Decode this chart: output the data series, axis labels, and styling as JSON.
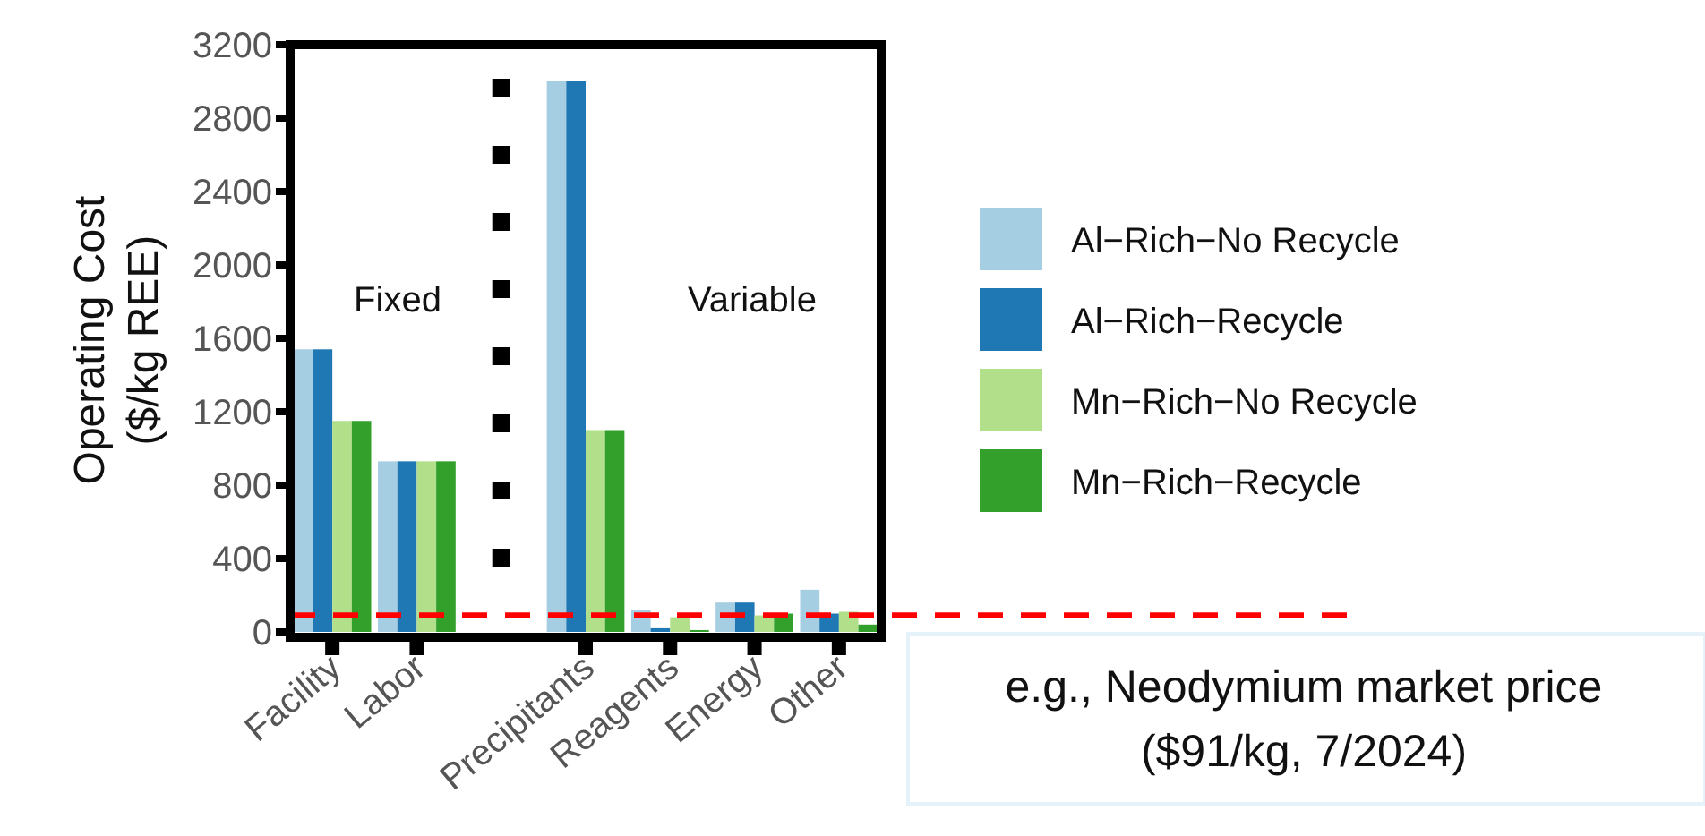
{
  "chart_data": {
    "type": "bar",
    "ylabel": "Operating Cost\n($/kg REE)",
    "categories": [
      "Facility",
      "Labor",
      null,
      "Precipitants",
      "Reagents",
      "Energy",
      "Other"
    ],
    "series": [
      {
        "name": "Al−Rich−No Recycle",
        "color": "#a6cee3",
        "values": [
          1540,
          930,
          null,
          3000,
          120,
          160,
          230
        ]
      },
      {
        "name": "Al−Rich−Recycle",
        "color": "#1f78b4",
        "values": [
          1540,
          930,
          null,
          3000,
          20,
          160,
          100
        ]
      },
      {
        "name": "Mn−Rich−No Recycle",
        "color": "#b2df8a",
        "values": [
          1150,
          930,
          null,
          1100,
          80,
          90,
          110
        ]
      },
      {
        "name": "Mn−Rich−Recycle",
        "color": "#33a02c",
        "values": [
          1150,
          930,
          null,
          1100,
          10,
          100,
          40
        ]
      }
    ],
    "ylim": [
      0,
      3200
    ],
    "yticks": [
      0,
      400,
      800,
      1200,
      1600,
      2000,
      2400,
      2800,
      3200
    ],
    "legend": "right",
    "ref_lines": [
      {
        "axis": "y",
        "value": 91,
        "label": "e.g., Neodymium market price\n($91/kg, 7/2024)",
        "color": "#ff0000",
        "line_style": "dashed"
      }
    ],
    "annotations": [
      "Fixed",
      "Variable"
    ]
  }
}
